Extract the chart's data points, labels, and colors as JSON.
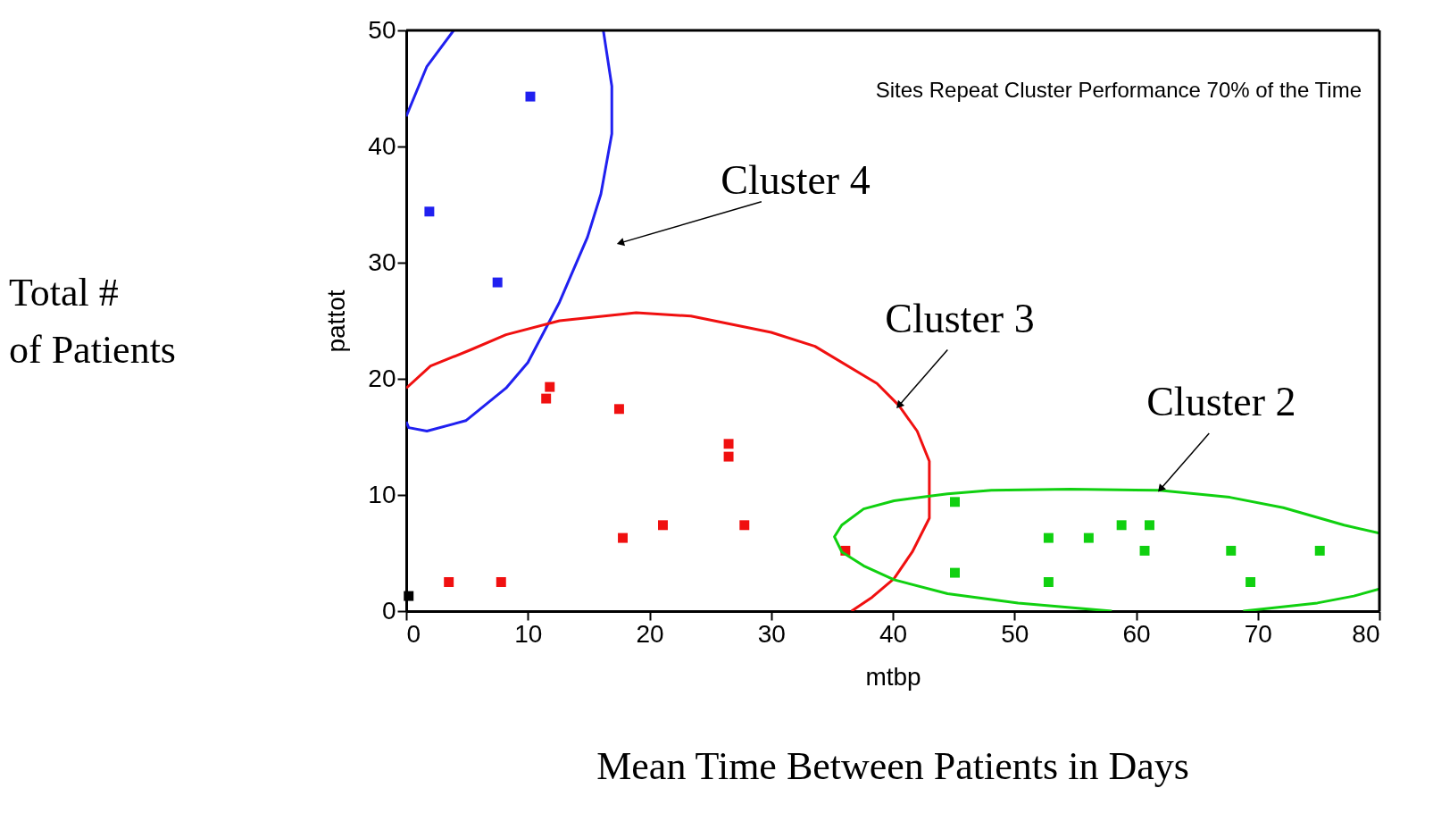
{
  "chart_data": {
    "type": "scatter",
    "xlabel": "mtbp",
    "ylabel": "pattot",
    "xlim": [
      0,
      80
    ],
    "ylim": [
      0,
      50
    ],
    "xticks": [
      0,
      10,
      20,
      30,
      40,
      50,
      60,
      70,
      80
    ],
    "yticks": [
      0,
      10,
      20,
      30,
      40,
      50
    ],
    "grid": false,
    "series": [
      {
        "marker": "square",
        "color": "#2020f0",
        "x": [
          10.2,
          1.9,
          7.5
        ],
        "values": [
          44.3,
          34.4,
          28.3
        ]
      },
      {
        "marker": "square",
        "color": "#f01010",
        "x": [
          11.8,
          11.5,
          17.5,
          26.5,
          26.5,
          17.8,
          21.1,
          27.8,
          3.5,
          7.8,
          36.1
        ],
        "values": [
          19.3,
          18.3,
          17.4,
          14.4,
          13.3,
          6.3,
          7.4,
          7.4,
          2.5,
          2.5,
          5.2
        ]
      },
      {
        "marker": "square",
        "color": "#000000",
        "x": [
          0.2
        ],
        "values": [
          1.3
        ]
      },
      {
        "marker": "square",
        "color": "#10d010",
        "x": [
          45.1,
          45.1,
          52.8,
          52.8,
          56.1,
          58.8,
          61.1,
          60.7,
          67.8,
          69.4,
          75.1
        ],
        "values": [
          9.4,
          3.3,
          6.3,
          2.5,
          6.3,
          7.4,
          7.4,
          5.2,
          5.2,
          2.5,
          5.2
        ]
      },
      {
        "type": "line",
        "color": "#2020f0",
        "x": [
          0,
          1.7,
          3.9
        ],
        "values": [
          42.6,
          46.9,
          50
        ]
      },
      {
        "type": "line",
        "color": "#2020f0",
        "x": [
          16.2,
          16.9,
          16.9,
          16.0,
          14.9,
          12.6,
          10.0,
          8.2,
          4.9,
          1.7,
          0.2,
          0
        ],
        "values": [
          50,
          45.2,
          41.1,
          35.9,
          32.2,
          26.6,
          21.4,
          19.2,
          16.4,
          15.5,
          15.8,
          16.3
        ]
      },
      {
        "type": "line",
        "color": "#f01010",
        "x": [
          0,
          2,
          5.3,
          8.2,
          12.6,
          18.9,
          23.4,
          30,
          33.6,
          38.7,
          40.5,
          42,
          43,
          43,
          41.6,
          40.1,
          38.3,
          36.6
        ],
        "values": [
          19.2,
          21.1,
          22.5,
          23.8,
          25,
          25.7,
          25.4,
          24,
          22.8,
          19.6,
          17.7,
          15.5,
          12.9,
          8,
          5.1,
          2.8,
          1.2,
          0
        ]
      },
      {
        "type": "line",
        "color": "#10d010",
        "x": [
          80,
          77.1,
          72.1,
          67.7,
          61.9,
          54.6,
          48.1,
          44.5,
          40.1,
          37.6,
          35.8,
          35.2,
          35.8,
          37.6,
          40.1,
          44.5,
          50.3,
          58
        ],
        "values": [
          6.7,
          7.4,
          8.9,
          9.8,
          10.4,
          10.5,
          10.4,
          10.1,
          9.5,
          8.8,
          7.4,
          6.4,
          5.1,
          3.9,
          2.7,
          1.5,
          0.7,
          0
        ]
      },
      {
        "type": "line",
        "color": "#10d010",
        "x": [
          68.8,
          74.9,
          77.9,
          80
        ],
        "values": [
          0,
          0.7,
          1.3,
          1.9
        ]
      }
    ],
    "annotations": [
      "Sites Repeat Cluster Performance 70% of the Time",
      "Total #\nof Patients",
      "Mean Time Between Patients in Days",
      "Cluster 4",
      {
        "text": "Cluster 3",
        "x": 40.5,
        "y": 17.7
      },
      {
        "text": "Cluster 2",
        "x": 62,
        "y": 10.5
      }
    ]
  }
}
